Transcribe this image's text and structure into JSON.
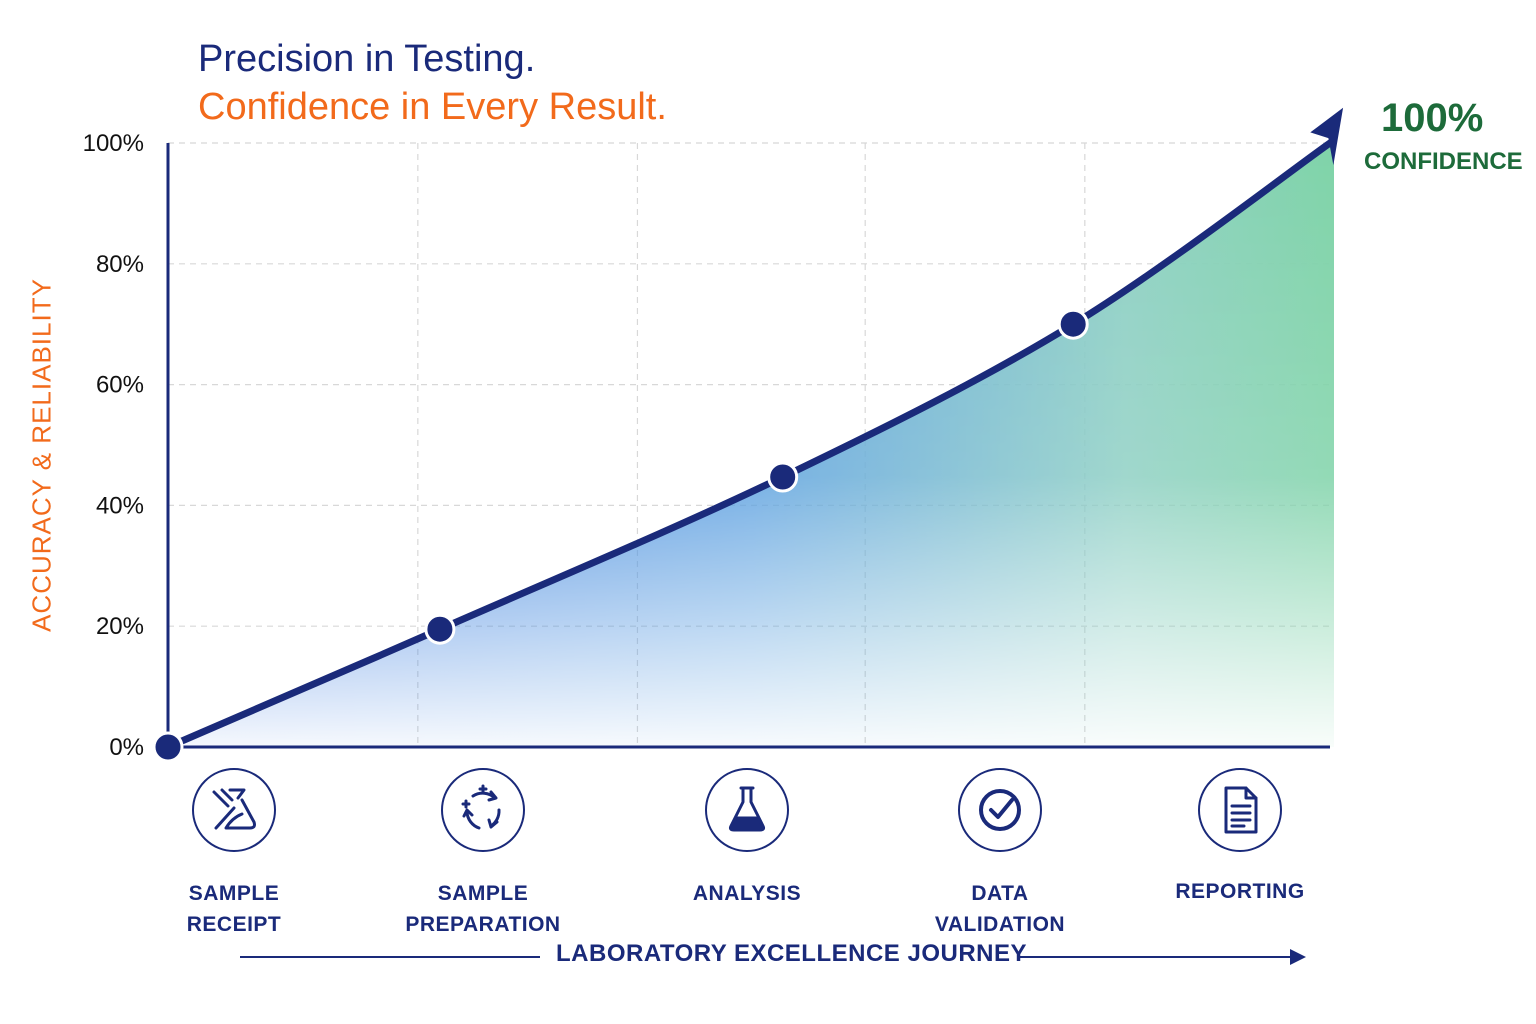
{
  "header": {
    "title": "Precision in Testing.",
    "subtitle": "Confidence in Every Result."
  },
  "end_label": {
    "value": "100%",
    "text": "CONFIDENCE"
  },
  "journey_label": "LABORATORY EXCELLENCE JOURNEY",
  "stages": [
    {
      "label": "SAMPLE\nRECEIPT",
      "icon": "sample-receipt-icon"
    },
    {
      "label": "SAMPLE\nPREPARATION",
      "icon": "sample-preparation-icon"
    },
    {
      "label": "ANALYSIS",
      "icon": "flask-icon"
    },
    {
      "label": "DATA\nVALIDATION",
      "icon": "checkmark-icon"
    },
    {
      "label": "REPORTING",
      "icon": "document-icon"
    }
  ],
  "colors": {
    "navy": "#1a2a7a",
    "orange": "#f26a1b",
    "green": "#1d6b3a",
    "fill_blue": "#3b82e6",
    "fill_green": "#7fd3a8"
  },
  "chart_data": {
    "type": "area",
    "ylabel": "ACCURACY & RELIABILITY",
    "xlabel": "LABORATORY EXCELLENCE JOURNEY",
    "y_ticks": [
      "0%",
      "20%",
      "40%",
      "60%",
      "80%",
      "100%"
    ],
    "ylim": [
      0,
      100
    ],
    "xlim": [
      0,
      100
    ],
    "grid": true,
    "series": [
      {
        "points": [
          {
            "x": 0,
            "y": 0
          },
          {
            "x": 23.4,
            "y": 19.5
          },
          {
            "x": 52.9,
            "y": 44.7
          },
          {
            "x": 77.9,
            "y": 70.0
          },
          {
            "x": 100,
            "y": 100
          }
        ],
        "markers": [
          0,
          1,
          2,
          3
        ]
      }
    ]
  }
}
